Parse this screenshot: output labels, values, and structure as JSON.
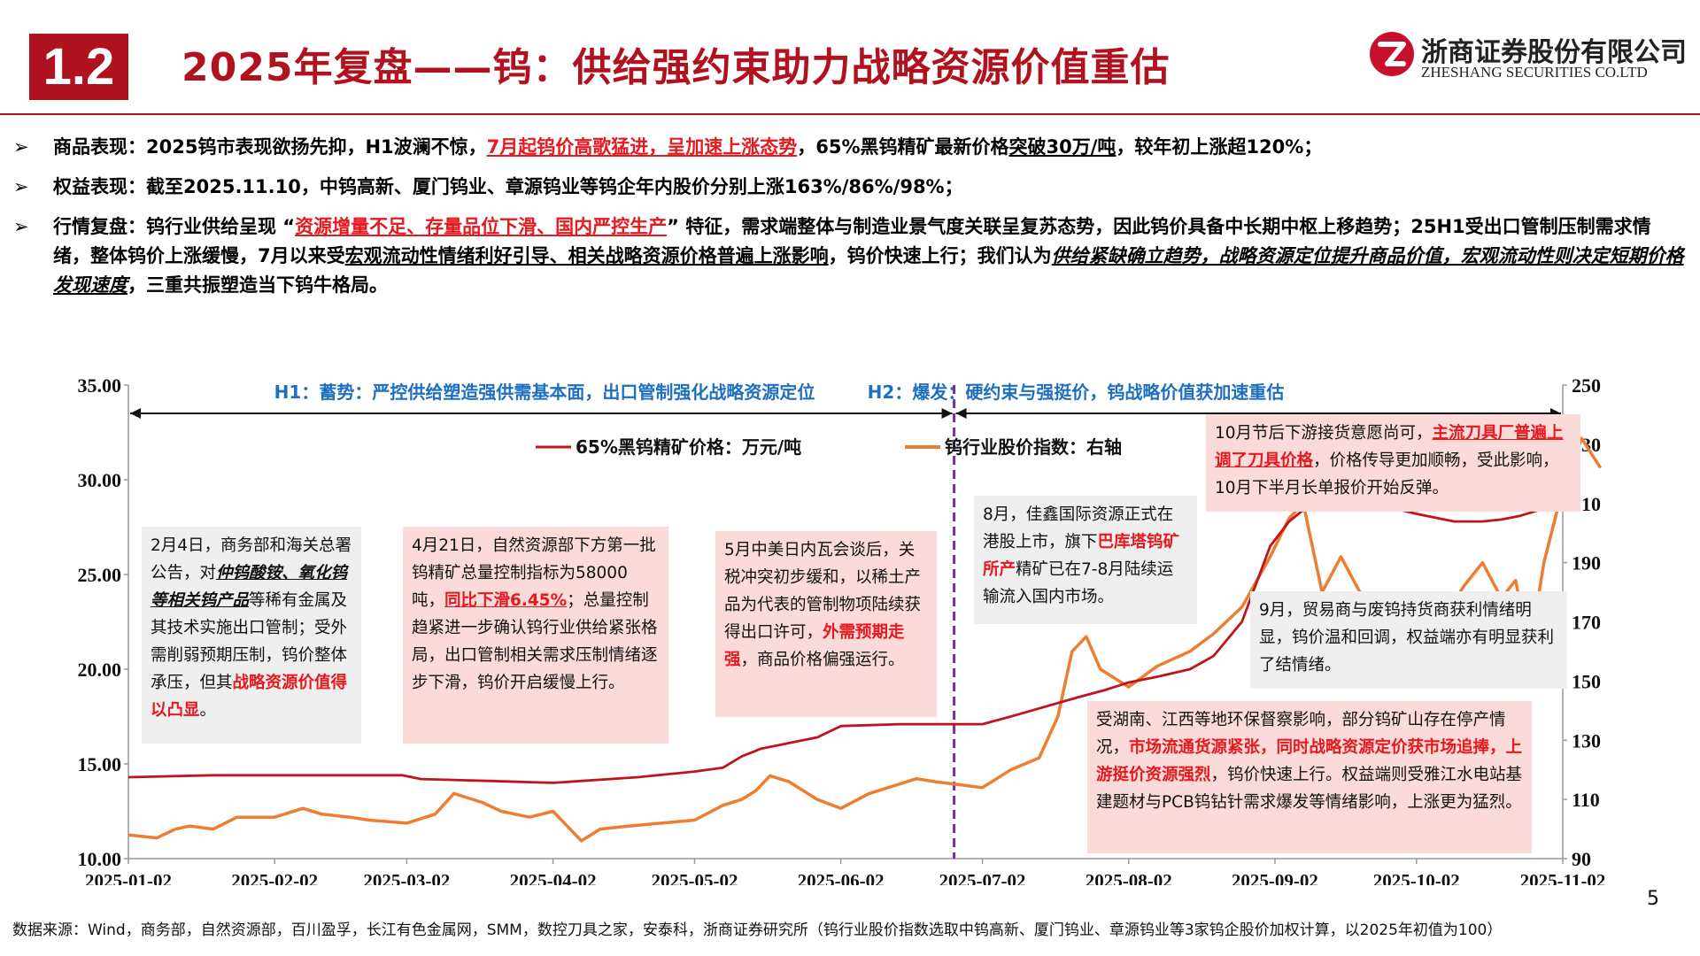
{
  "header": {
    "section_number": "1.2",
    "title": "2025年复盘——钨：供给强约束助力战略资源价值重估",
    "logo_cn": "浙商证券股份有限公司",
    "logo_en": "ZHESHANG SECURITIES CO.LTD"
  },
  "bullets": {
    "b1": {
      "arrow": "➢",
      "p1": "商品表现：2025钨市表现欲扬先抑，H1波澜不惊，",
      "p2": "7月起钨价高歌猛进，呈加速上涨态势",
      "p3": "，65%黑钨精矿最新价格",
      "p4": "突破30万/吨",
      "p5": "，较年初上涨超120%；"
    },
    "b2": {
      "arrow": "➢",
      "p1": "权益表现：截至2025.11.10，中钨高新、厦门钨业、章源钨业等钨企年内股价分别上涨163%/86%/98%；"
    },
    "b3": {
      "arrow": "➢",
      "p1": "行情复盘：钨行业供给呈现 “",
      "p2": "资源增量不足、存量品位下滑、国内严控生产",
      "p3": "” 特征，需求端整体与制造业景气度关联呈复苏态势，因此钨价具备中长期中枢上移趋势；25H1受出口管制压制需求情绪，整体钨价上涨缓慢，7月以来受",
      "p4": "宏观流动性情绪利好引导、相关战略资源价格普遍上涨影响",
      "p5": "，钨价快速上行；我们认为",
      "p6": "供给紧缺确立趋势，战略资源定位提升商品价值，宏观流动性则决定短期价格发现速度",
      "p7": "，三重共振塑造当下钨牛格局。"
    }
  },
  "phases": {
    "h1": "H1：蓄势：严控供给塑造强供需基本面，出口管制强化战略资源定位",
    "h2": "H2：爆发：硬约束与强挺价，钨战略价值获加速重估"
  },
  "notes": {
    "n1": {
      "t1": "2月4日，商务部和海关总署公告，对",
      "t2": "仲钨酸铵、氧化钨等相关钨产品",
      "t3": "等稀有金属及其技术实施出口管制；受外需削弱预期压制，钨价整体承压，但其",
      "t4": "战略资源价值得以凸显",
      "t5": "。"
    },
    "n2": {
      "t1": "4月21日，自然资源部下方第一批钨精矿总量控制指标为58000吨，",
      "t2": "同比下滑6.45%",
      "t3": "；总量控制趋紧进一步确认钨行业供给紧张格局，出口管制相关需求压制情绪逐步下滑，钨价开启缓慢上行。"
    },
    "n3": {
      "t1": "5月中美日内瓦会谈后，关税冲突初步缓和，以稀土产品为代表的管制物项陆续获得出口许可，",
      "t2": "外需预期走强",
      "t3": "，商品价格偏强运行。"
    },
    "n4": {
      "t1": "8月，佳鑫国际资源正式在港股上市，旗下",
      "t2": "巴库塔钨矿所产",
      "t3": "精矿已在7-8月陆续运输流入国内市场。"
    },
    "n5": {
      "t1": "10月节后下游接货意愿尚可，",
      "t2": "主流刀具厂普遍上调了刀具价格",
      "t3": "，价格传导更加顺畅，受此影响，10月下半月长单报价开始反弹。"
    },
    "n6": {
      "t1": "9月，贸易商与废钨持货商获利情绪明显，钨价温和回调，权益端亦有明显获利了结情绪。"
    },
    "n7": {
      "t1": "受湖南、江西等地环保督察影响，部分钨矿山存在停产情况，",
      "t2": "市场流通货源紧张，同时战略资源定价获市场追捧，上游挺价资源强烈",
      "t3": "，钨价快速上行。权益端则受雅江水电站基建题材与PCB钨钻针需求爆发等情绪影响，上涨更为猛烈。"
    }
  },
  "footer": {
    "source": "数据来源：Wind，商务部，自然资源部，百川盈孚，长江有色金属网，SMM，数控刀具之家，安泰科，浙商证券研究所（钨行业股价指数选取中钨高新、厦门钨业、章源钨业等3家钨企股价加权计算，以2025年初值为100）",
    "page": "5"
  },
  "colors": {
    "brand_red": "#b0121f",
    "price_line": "#c0141c",
    "index_line": "#ed7d31",
    "phase_line": "#7030a0",
    "phase_text": "#1f6fc1"
  },
  "chart_data": {
    "type": "line",
    "x_ticks": [
      "2025-01-02",
      "2025-02-02",
      "2025-03-02",
      "2025-04-02",
      "2025-05-02",
      "2025-06-02",
      "2025-07-02",
      "2025-08-02",
      "2025-09-02",
      "2025-10-02",
      "2025-11-02"
    ],
    "y_left_ticks": [
      "35.00",
      "30.00",
      "25.00",
      "20.00",
      "15.00",
      "10.00"
    ],
    "y_right_ticks": [
      "250",
      "230",
      "210",
      "190",
      "170",
      "150",
      "130",
      "110",
      "90"
    ],
    "ylim_left": [
      10,
      35
    ],
    "ylim_right": [
      90,
      250
    ],
    "series": [
      {
        "name": "65%黑钨精矿价格：万元/吨",
        "axis": "left",
        "x": [
          "2025-01-02",
          "2025-01-20",
          "2025-02-05",
          "2025-03-01",
          "2025-03-05",
          "2025-03-20",
          "2025-04-02",
          "2025-04-20",
          "2025-05-02",
          "2025-05-08",
          "2025-05-12",
          "2025-05-16",
          "2025-05-20",
          "2025-05-28",
          "2025-06-02",
          "2025-06-15",
          "2025-06-27",
          "2025-07-02",
          "2025-07-08",
          "2025-07-15",
          "2025-07-22",
          "2025-07-28",
          "2025-08-02",
          "2025-08-08",
          "2025-08-15",
          "2025-08-20",
          "2025-08-26",
          "2025-09-01",
          "2025-09-05",
          "2025-09-08",
          "2025-09-12",
          "2025-09-16",
          "2025-09-22",
          "2025-10-02",
          "2025-10-10",
          "2025-10-16",
          "2025-10-20",
          "2025-10-24",
          "2025-10-28",
          "2025-11-02"
        ],
        "values": [
          14.3,
          14.4,
          14.4,
          14.4,
          14.2,
          14.1,
          14.0,
          14.3,
          14.6,
          14.8,
          15.4,
          15.8,
          16.0,
          16.4,
          17.0,
          17.1,
          17.1,
          17.1,
          17.5,
          18.0,
          18.5,
          18.9,
          19.3,
          19.6,
          20.0,
          20.7,
          22.5,
          26.5,
          27.8,
          28.4,
          28.8,
          28.9,
          28.8,
          28.2,
          27.8,
          27.8,
          27.9,
          28.1,
          28.4,
          30.0
        ]
      },
      {
        "name": "钨行业股价指数：右轴",
        "axis": "right",
        "x": [
          "2025-01-02",
          "2025-01-08",
          "2025-01-12",
          "2025-01-15",
          "2025-01-20",
          "2025-01-25",
          "2025-02-02",
          "2025-02-08",
          "2025-02-12",
          "2025-02-18",
          "2025-02-22",
          "2025-03-02",
          "2025-03-08",
          "2025-03-12",
          "2025-03-18",
          "2025-03-22",
          "2025-03-28",
          "2025-04-02",
          "2025-04-05",
          "2025-04-08",
          "2025-04-12",
          "2025-04-18",
          "2025-04-25",
          "2025-05-02",
          "2025-05-08",
          "2025-05-12",
          "2025-05-15",
          "2025-05-18",
          "2025-05-22",
          "2025-05-28",
          "2025-06-02",
          "2025-06-08",
          "2025-06-12",
          "2025-06-18",
          "2025-06-22",
          "2025-06-27",
          "2025-07-02",
          "2025-07-08",
          "2025-07-14",
          "2025-07-18",
          "2025-07-21",
          "2025-07-24",
          "2025-07-27",
          "2025-08-02",
          "2025-08-08",
          "2025-08-15",
          "2025-08-20",
          "2025-08-26",
          "2025-09-01",
          "2025-09-05",
          "2025-09-08",
          "2025-09-12",
          "2025-09-16",
          "2025-09-20",
          "2025-09-24",
          "2025-10-02",
          "2025-10-08",
          "2025-10-12",
          "2025-10-16",
          "2025-10-20",
          "2025-10-23",
          "2025-10-26",
          "2025-10-29",
          "2025-11-02",
          "2025-11-06",
          "2025-11-10"
        ],
        "values": [
          98,
          97,
          100,
          101,
          100,
          104,
          104,
          107,
          105,
          104,
          103,
          102,
          105,
          112,
          109,
          106,
          104,
          106,
          101,
          96,
          100,
          101,
          102,
          103,
          108,
          110,
          113,
          118,
          116,
          110,
          107,
          112,
          114,
          117,
          116,
          115,
          114,
          120,
          124,
          138,
          160,
          165,
          154,
          148,
          155,
          160,
          166,
          175,
          192,
          205,
          210,
          180,
          192,
          180,
          178,
          165,
          172,
          182,
          190,
          178,
          184,
          160,
          190,
          215,
          232,
          222
        ]
      }
    ]
  }
}
